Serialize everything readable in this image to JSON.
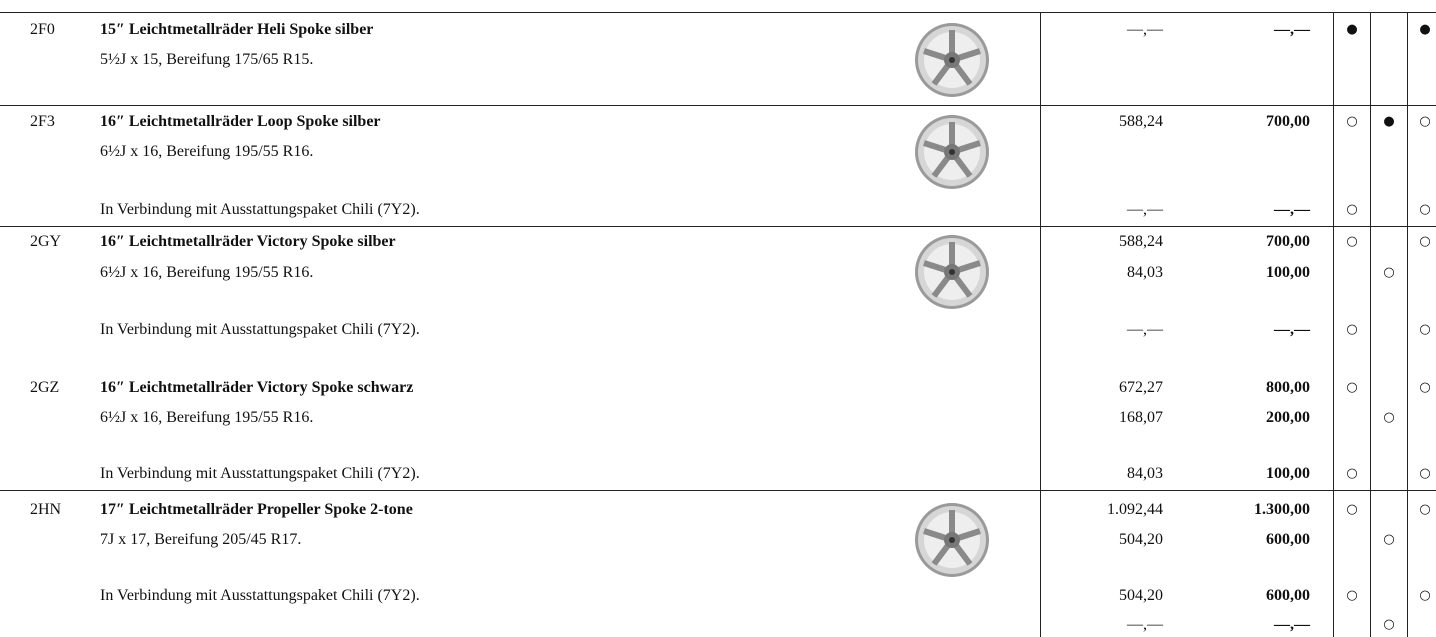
{
  "rows": [
    {
      "code": "2F0",
      "text": "15″ Leichtmetallräder Heli Spoke silber",
      "net": "—,—",
      "gross": "—,—",
      "a": "●",
      "c": "●"
    },
    {
      "text": "5½J x 15, Bereifung 175/65 R15."
    },
    {
      "code": "2F3",
      "text": "16″ Leichtmetallräder Loop Spoke silber",
      "net": "588,24",
      "gross": "700,00",
      "a": "○",
      "b": "●",
      "c": "○"
    },
    {
      "text": "6½J x 16, Bereifung 195/55 R16."
    },
    {
      "text": "In Verbindung mit Ausstattungspaket Chili (7Y2).",
      "net": "—,—",
      "gross": "—,—",
      "a": "○",
      "c": "○"
    },
    {
      "code": "2GY",
      "text": "16″ Leichtmetallräder Victory Spoke silber",
      "net": "588,24",
      "gross": "700,00",
      "a": "○",
      "c": "○"
    },
    {
      "text": "6½J x 16, Bereifung 195/55 R16.",
      "net": "84,03",
      "gross": "100,00",
      "b": "○"
    },
    {
      "text": "In Verbindung mit Ausstattungspaket Chili (7Y2).",
      "net": "—,—",
      "gross": "—,—",
      "a": "○",
      "c": "○"
    },
    {
      "code": "2GZ",
      "text": "16″ Leichtmetallräder Victory Spoke schwarz",
      "net": "672,27",
      "gross": "800,00",
      "a": "○",
      "c": "○"
    },
    {
      "text": "6½J x 16, Bereifung 195/55 R16.",
      "net": "168,07",
      "gross": "200,00",
      "b": "○"
    },
    {
      "text": "In Verbindung mit Ausstattungspaket Chili (7Y2).",
      "net": "84,03",
      "gross": "100,00",
      "a": "○",
      "c": "○"
    },
    {
      "code": "2HN",
      "text": "17″ Leichtmetallräder Propeller Spoke 2-tone",
      "net": "1.092,44",
      "gross": "1.300,00",
      "a": "○",
      "c": "○"
    },
    {
      "text": "7J x 17, Bereifung 205/45 R17.",
      "net": "504,20",
      "gross": "600,00",
      "b": "○"
    },
    {
      "text": "In Verbindung mit Ausstattungspaket Chili (7Y2).",
      "net": "504,20",
      "gross": "600,00",
      "a": "○",
      "c": "○"
    },
    {
      "net": "—,—",
      "gross": "—,—",
      "b": "○"
    }
  ]
}
